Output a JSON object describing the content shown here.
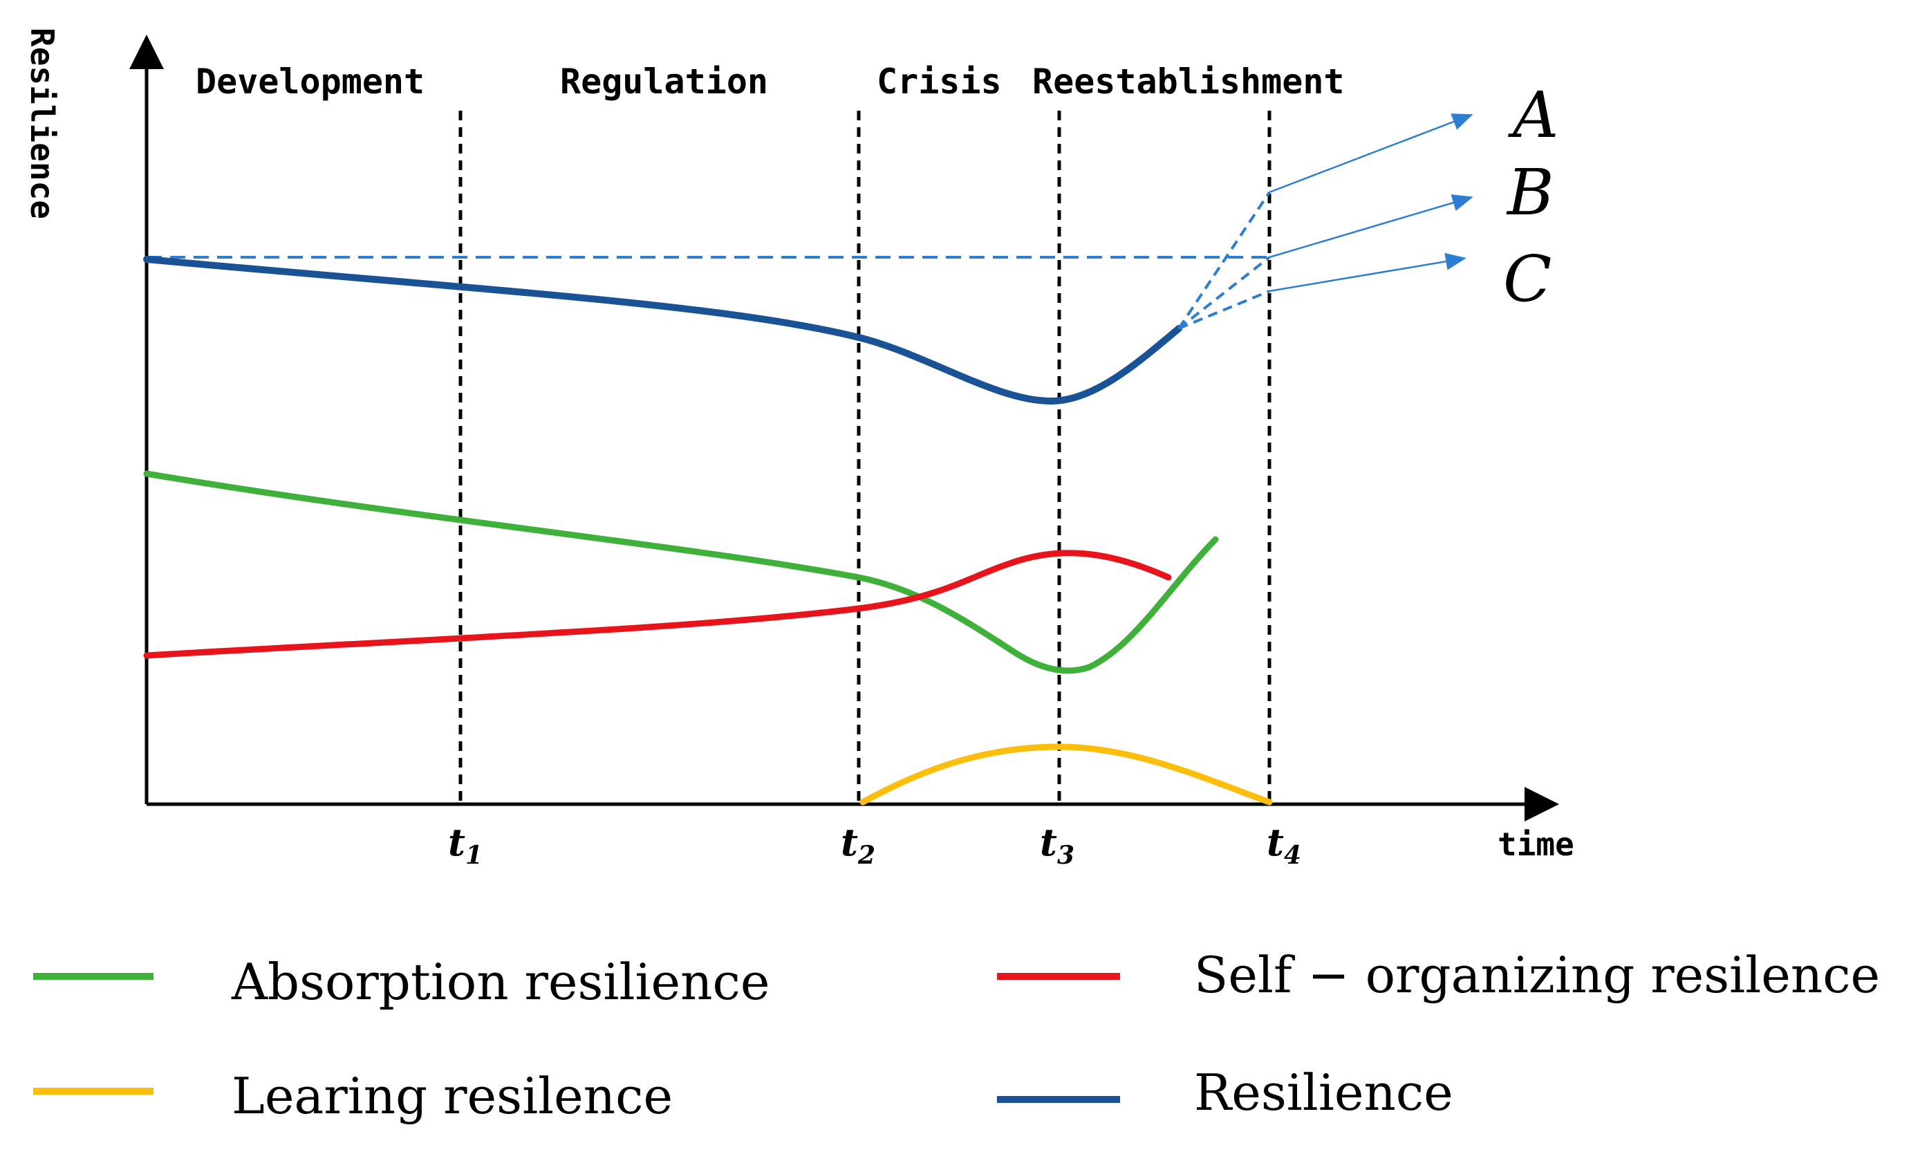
{
  "chart_data": {
    "type": "line",
    "title": "",
    "ylabel": "Resilience",
    "xlabel": "time",
    "phases": [
      "Development",
      "Regulation",
      "Crisis",
      "Reestablishment"
    ],
    "time_markers": [
      {
        "base": "t",
        "sub": "1"
      },
      {
        "base": "t",
        "sub": "2"
      },
      {
        "base": "t",
        "sub": "3"
      },
      {
        "base": "t",
        "sub": "4"
      }
    ],
    "scenarios": [
      "A",
      "B",
      "C"
    ],
    "series": [
      {
        "name": "Absorption resilience",
        "color": "#3fb03a"
      },
      {
        "name": "Self − organizing resilence",
        "color": "#e8141b"
      },
      {
        "name": "Learing resilence",
        "color": "#fcbe0c"
      },
      {
        "name": "Resilience",
        "color": "#1a5296"
      }
    ],
    "colors": {
      "axis": "#000000",
      "baseline_dashed": "#2d7dd2",
      "scenario_arrows": "#2d7dd2"
    }
  }
}
